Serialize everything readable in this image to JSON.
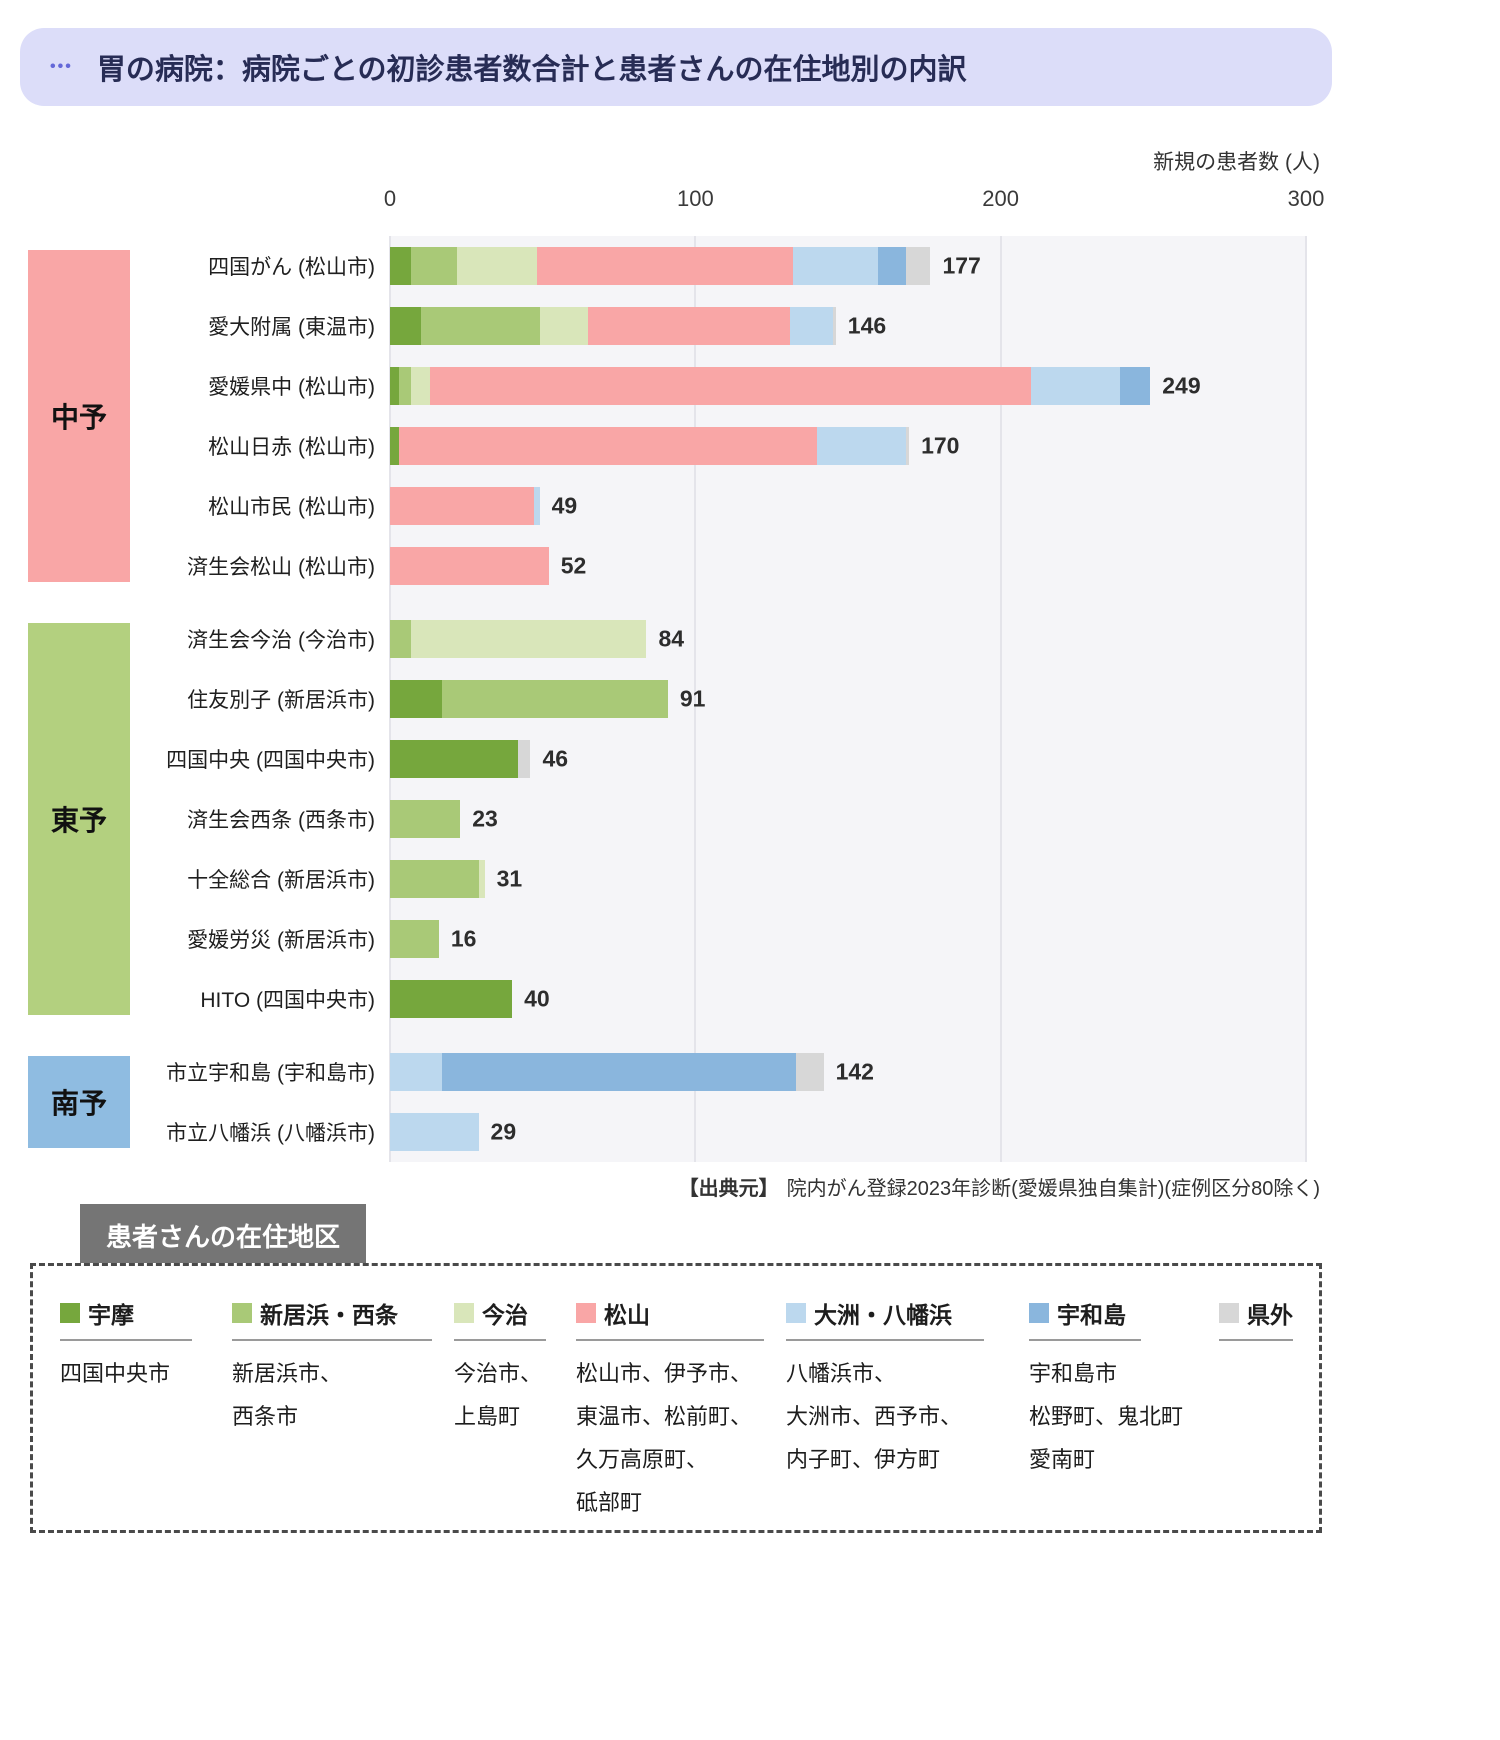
{
  "header": {
    "ellipsis": "•••",
    "title": "胃の病院：病院ごとの初診患者数合計と患者さんの在住地別の内訳"
  },
  "axis": {
    "unit_label": "新規の患者数 (人)"
  },
  "source": {
    "label": "【出典元】",
    "text": "院内がん登録2023年診断(愛媛県独自集計)(症例区分80除く)"
  },
  "legend": {
    "title": "患者さんの在住地区",
    "items": [
      {
        "key": "uma",
        "label": "宇摩",
        "color": "#76a73d",
        "lines": [
          "四国中央市"
        ]
      },
      {
        "key": "niihama-saijo",
        "label": "新居浜・西条",
        "color": "#a9c977",
        "lines": [
          "新居浜市、",
          "西条市"
        ]
      },
      {
        "key": "imabari",
        "label": "今治",
        "color": "#d9e6ba",
        "lines": [
          "今治市、",
          "上島町"
        ]
      },
      {
        "key": "matsuyama",
        "label": "松山",
        "color": "#f9a6a6",
        "lines": [
          "松山市、伊予市、",
          "東温市、松前町、",
          "久万高原町、",
          "砥部町"
        ]
      },
      {
        "key": "ozu-yawatahama",
        "label": "大洲・八幡浜",
        "color": "#bcd8ee",
        "lines": [
          "八幡浜市、",
          "大洲市、西予市、",
          "内子町、伊方町"
        ]
      },
      {
        "key": "uwajima",
        "label": "宇和島",
        "color": "#8ab6dd",
        "lines": [
          "宇和島市",
          "松野町、鬼北町",
          "愛南町"
        ]
      },
      {
        "key": "kengai",
        "label": "県外",
        "color": "#d7d7d7",
        "lines": []
      }
    ]
  },
  "chart_data": {
    "type": "bar",
    "stacked": true,
    "orientation": "horizontal",
    "title": "胃の病院：病院ごとの初診患者数合計と患者さんの在住地別の内訳",
    "xlabel": "新規の患者数 (人)",
    "x_max": 300,
    "x_ticks": [
      "0",
      "100",
      "200",
      "300"
    ],
    "series": [
      {
        "key": "uma",
        "label": "宇摩",
        "color": "#76a73d"
      },
      {
        "key": "niihama-saijo",
        "label": "新居浜・西条",
        "color": "#a9c977"
      },
      {
        "key": "imabari",
        "label": "今治",
        "color": "#d9e6ba"
      },
      {
        "key": "matsuyama",
        "label": "松山",
        "color": "#f9a6a6"
      },
      {
        "key": "ozu-yawatahama",
        "label": "大洲・八幡浜",
        "color": "#bcd8ee"
      },
      {
        "key": "uwajima",
        "label": "宇和島",
        "color": "#8ab6dd"
      },
      {
        "key": "kengai",
        "label": "県外",
        "color": "#d7d7d7"
      }
    ],
    "groups": [
      {
        "name": "中予",
        "color": "#f9a6a6",
        "hospitals": [
          {
            "label": "四国がん (松山市)",
            "total": 177,
            "values": [
              7,
              15,
              26,
              84,
              28,
              9,
              8
            ]
          },
          {
            "label": "愛大附属 (東温市)",
            "total": 146,
            "values": [
              10,
              39,
              16,
              66,
              14,
              0,
              1
            ]
          },
          {
            "label": "愛媛県中 (松山市)",
            "total": 249,
            "values": [
              3,
              4,
              6,
              197,
              29,
              10,
              0
            ]
          },
          {
            "label": "松山日赤 (松山市)",
            "total": 170,
            "values": [
              3,
              0,
              0,
              137,
              29,
              0,
              1
            ]
          },
          {
            "label": "松山市民 (松山市)",
            "total": 49,
            "values": [
              0,
              0,
              0,
              47,
              2,
              0,
              0
            ]
          },
          {
            "label": "済生会松山 (松山市)",
            "total": 52,
            "values": [
              0,
              0,
              0,
              52,
              0,
              0,
              0
            ]
          }
        ]
      },
      {
        "name": "東予",
        "color": "#b3d07f",
        "hospitals": [
          {
            "label": "済生会今治 (今治市)",
            "total": 84,
            "values": [
              0,
              7,
              77,
              0,
              0,
              0,
              0
            ]
          },
          {
            "label": "住友別子 (新居浜市)",
            "total": 91,
            "values": [
              17,
              74,
              0,
              0,
              0,
              0,
              0
            ]
          },
          {
            "label": "四国中央 (四国中央市)",
            "total": 46,
            "values": [
              42,
              0,
              0,
              0,
              0,
              0,
              4
            ]
          },
          {
            "label": "済生会西条 (西条市)",
            "total": 23,
            "values": [
              0,
              23,
              0,
              0,
              0,
              0,
              0
            ]
          },
          {
            "label": "十全総合 (新居浜市)",
            "total": 31,
            "values": [
              0,
              29,
              2,
              0,
              0,
              0,
              0
            ]
          },
          {
            "label": "愛媛労災 (新居浜市)",
            "total": 16,
            "values": [
              0,
              16,
              0,
              0,
              0,
              0,
              0
            ]
          },
          {
            "label": "HITO (四国中央市)",
            "total": 40,
            "values": [
              40,
              0,
              0,
              0,
              0,
              0,
              0
            ]
          }
        ]
      },
      {
        "name": "南予",
        "color": "#8fbce1",
        "hospitals": [
          {
            "label": "市立宇和島 (宇和島市)",
            "total": 142,
            "values": [
              0,
              0,
              0,
              0,
              17,
              116,
              9
            ]
          },
          {
            "label": "市立八幡浜 (八幡浜市)",
            "total": 29,
            "values": [
              0,
              0,
              0,
              0,
              29,
              0,
              0
            ]
          }
        ]
      }
    ]
  }
}
